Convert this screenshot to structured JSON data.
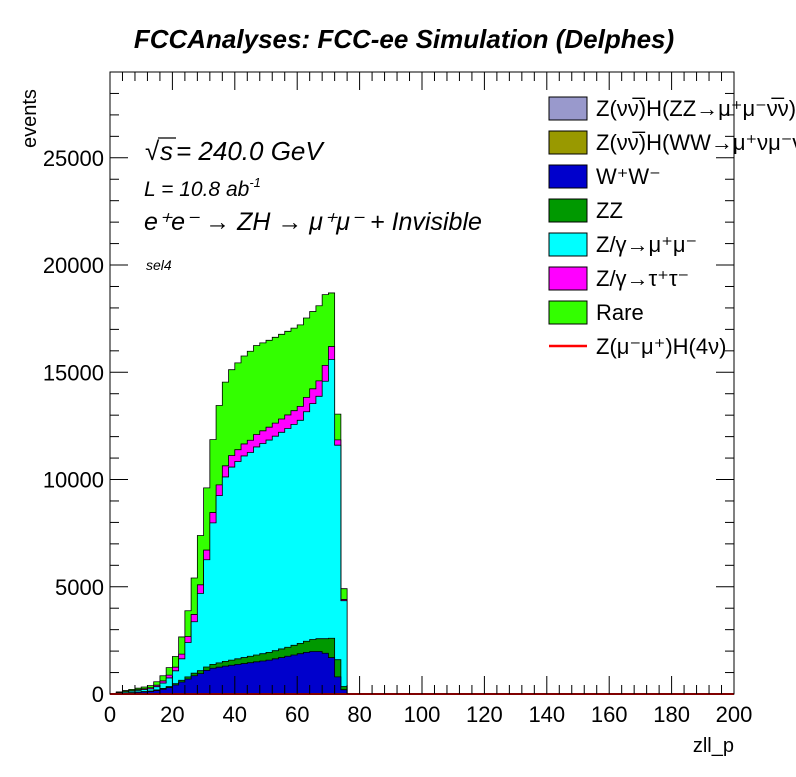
{
  "chart_data": {
    "type": "area",
    "title": "FCCAnalyses: FCC-ee Simulation (Delphes)",
    "xlabel": "zll_p",
    "ylabel": "events",
    "xlim": [
      0,
      200
    ],
    "ylim": [
      0,
      29000
    ],
    "xticks": [
      "0",
      "20",
      "40",
      "60",
      "80",
      "100",
      "120",
      "140",
      "160",
      "180",
      "200"
    ],
    "yticks": [
      "0",
      "5000",
      "10000",
      "15000",
      "20000",
      "25000"
    ],
    "grid": false,
    "legend_position": "top-right",
    "annotations": {
      "sqrt_s": "s",
      "energy": " = 240.0 GeV",
      "lumi_main": "L = 10.8 ab",
      "lumi_exp": "-1",
      "process": "e⁺e⁻ → ZH → μ⁺μ⁻ + Invisible",
      "selection": "sel4"
    },
    "x_edges": [
      0,
      2,
      4,
      6,
      8,
      10,
      12,
      14,
      16,
      18,
      20,
      22,
      24,
      26,
      28,
      30,
      32,
      34,
      36,
      38,
      40,
      42,
      44,
      46,
      48,
      50,
      52,
      54,
      56,
      58,
      60,
      62,
      64,
      66,
      68,
      70,
      72,
      74,
      76,
      78,
      80,
      200
    ],
    "series": [
      {
        "name": "Z(νν̅)H(ZZ→μ⁺μ⁻ν̅ν)",
        "color": "#9999cc",
        "values": [
          0,
          0,
          0,
          0,
          0,
          0,
          0,
          0,
          0,
          0,
          0,
          0,
          0,
          0,
          0,
          0,
          0,
          0,
          0,
          0,
          0,
          0,
          0,
          0,
          0,
          0,
          0,
          0,
          0,
          0,
          0,
          0,
          0,
          0,
          0,
          0,
          0,
          0,
          0,
          0,
          0
        ]
      },
      {
        "name": "Z(νν̅)H(WW→μ⁺νμ⁻ν̅)",
        "color": "#999900",
        "values": [
          0,
          0,
          0,
          0,
          0,
          0,
          0,
          0,
          0,
          0,
          0,
          0,
          0,
          0,
          0,
          0,
          0,
          0,
          0,
          0,
          0,
          0,
          0,
          0,
          0,
          0,
          0,
          0,
          0,
          0,
          0,
          0,
          0,
          0,
          0,
          0,
          0,
          0,
          0,
          0,
          0
        ]
      },
      {
        "name": "W⁺W⁻",
        "color": "#0000cc",
        "values": [
          0,
          20,
          40,
          60,
          80,
          100,
          120,
          160,
          220,
          300,
          420,
          560,
          700,
          850,
          950,
          1100,
          1200,
          1250,
          1300,
          1340,
          1380,
          1420,
          1460,
          1500,
          1540,
          1580,
          1640,
          1700,
          1760,
          1820,
          1880,
          1940,
          1980,
          1980,
          1900,
          1700,
          800,
          200,
          0,
          0,
          0
        ]
      },
      {
        "name": "ZZ",
        "color": "#009900",
        "values": [
          0,
          0,
          0,
          5,
          10,
          15,
          20,
          30,
          40,
          50,
          60,
          80,
          100,
          120,
          140,
          160,
          180,
          200,
          220,
          240,
          260,
          280,
          300,
          320,
          340,
          360,
          380,
          400,
          420,
          450,
          480,
          520,
          560,
          600,
          680,
          900,
          800,
          150,
          0,
          0,
          0
        ]
      },
      {
        "name": "Z/γ→μ⁺μ⁻",
        "color": "#00ffff",
        "values": [
          0,
          40,
          60,
          70,
          80,
          90,
          100,
          150,
          250,
          400,
          600,
          1000,
          1600,
          2400,
          3600,
          5000,
          6600,
          7800,
          8600,
          9000,
          9200,
          9400,
          9500,
          9700,
          9800,
          9900,
          10000,
          10100,
          10200,
          10300,
          10400,
          10700,
          11000,
          11300,
          12000,
          13000,
          10000,
          4000,
          0,
          0,
          0
        ]
      },
      {
        "name": "Z/γ→τ⁺τ⁻",
        "color": "#ff00ff",
        "values": [
          0,
          5,
          10,
          20,
          30,
          40,
          50,
          70,
          100,
          130,
          170,
          220,
          280,
          340,
          400,
          450,
          480,
          500,
          520,
          540,
          550,
          560,
          570,
          580,
          590,
          600,
          610,
          620,
          630,
          640,
          650,
          670,
          690,
          720,
          740,
          600,
          250,
          60,
          0,
          0,
          0
        ]
      },
      {
        "name": "Rare",
        "color": "#33ff00",
        "values": [
          0,
          30,
          50,
          60,
          70,
          80,
          100,
          160,
          240,
          350,
          500,
          800,
          1200,
          1700,
          2300,
          2900,
          3400,
          3700,
          3900,
          4000,
          4050,
          4100,
          4150,
          4150,
          4100,
          4050,
          4000,
          3950,
          3900,
          3850,
          3800,
          3700,
          3600,
          3500,
          3300,
          2500,
          1200,
          500,
          0,
          0,
          0
        ]
      }
    ],
    "signal": {
      "name": "Z(μ⁻μ⁺)H(4ν)",
      "color": "#ff0000",
      "values": [
        0,
        0,
        0,
        0,
        0,
        0,
        0,
        0,
        0,
        0,
        0,
        0,
        0,
        0,
        0,
        0,
        0,
        0,
        0,
        0,
        0,
        0,
        0,
        0,
        0,
        0,
        0,
        0,
        0,
        0,
        0,
        0,
        0,
        0,
        0,
        0,
        0,
        0,
        0,
        0,
        0
      ]
    }
  }
}
